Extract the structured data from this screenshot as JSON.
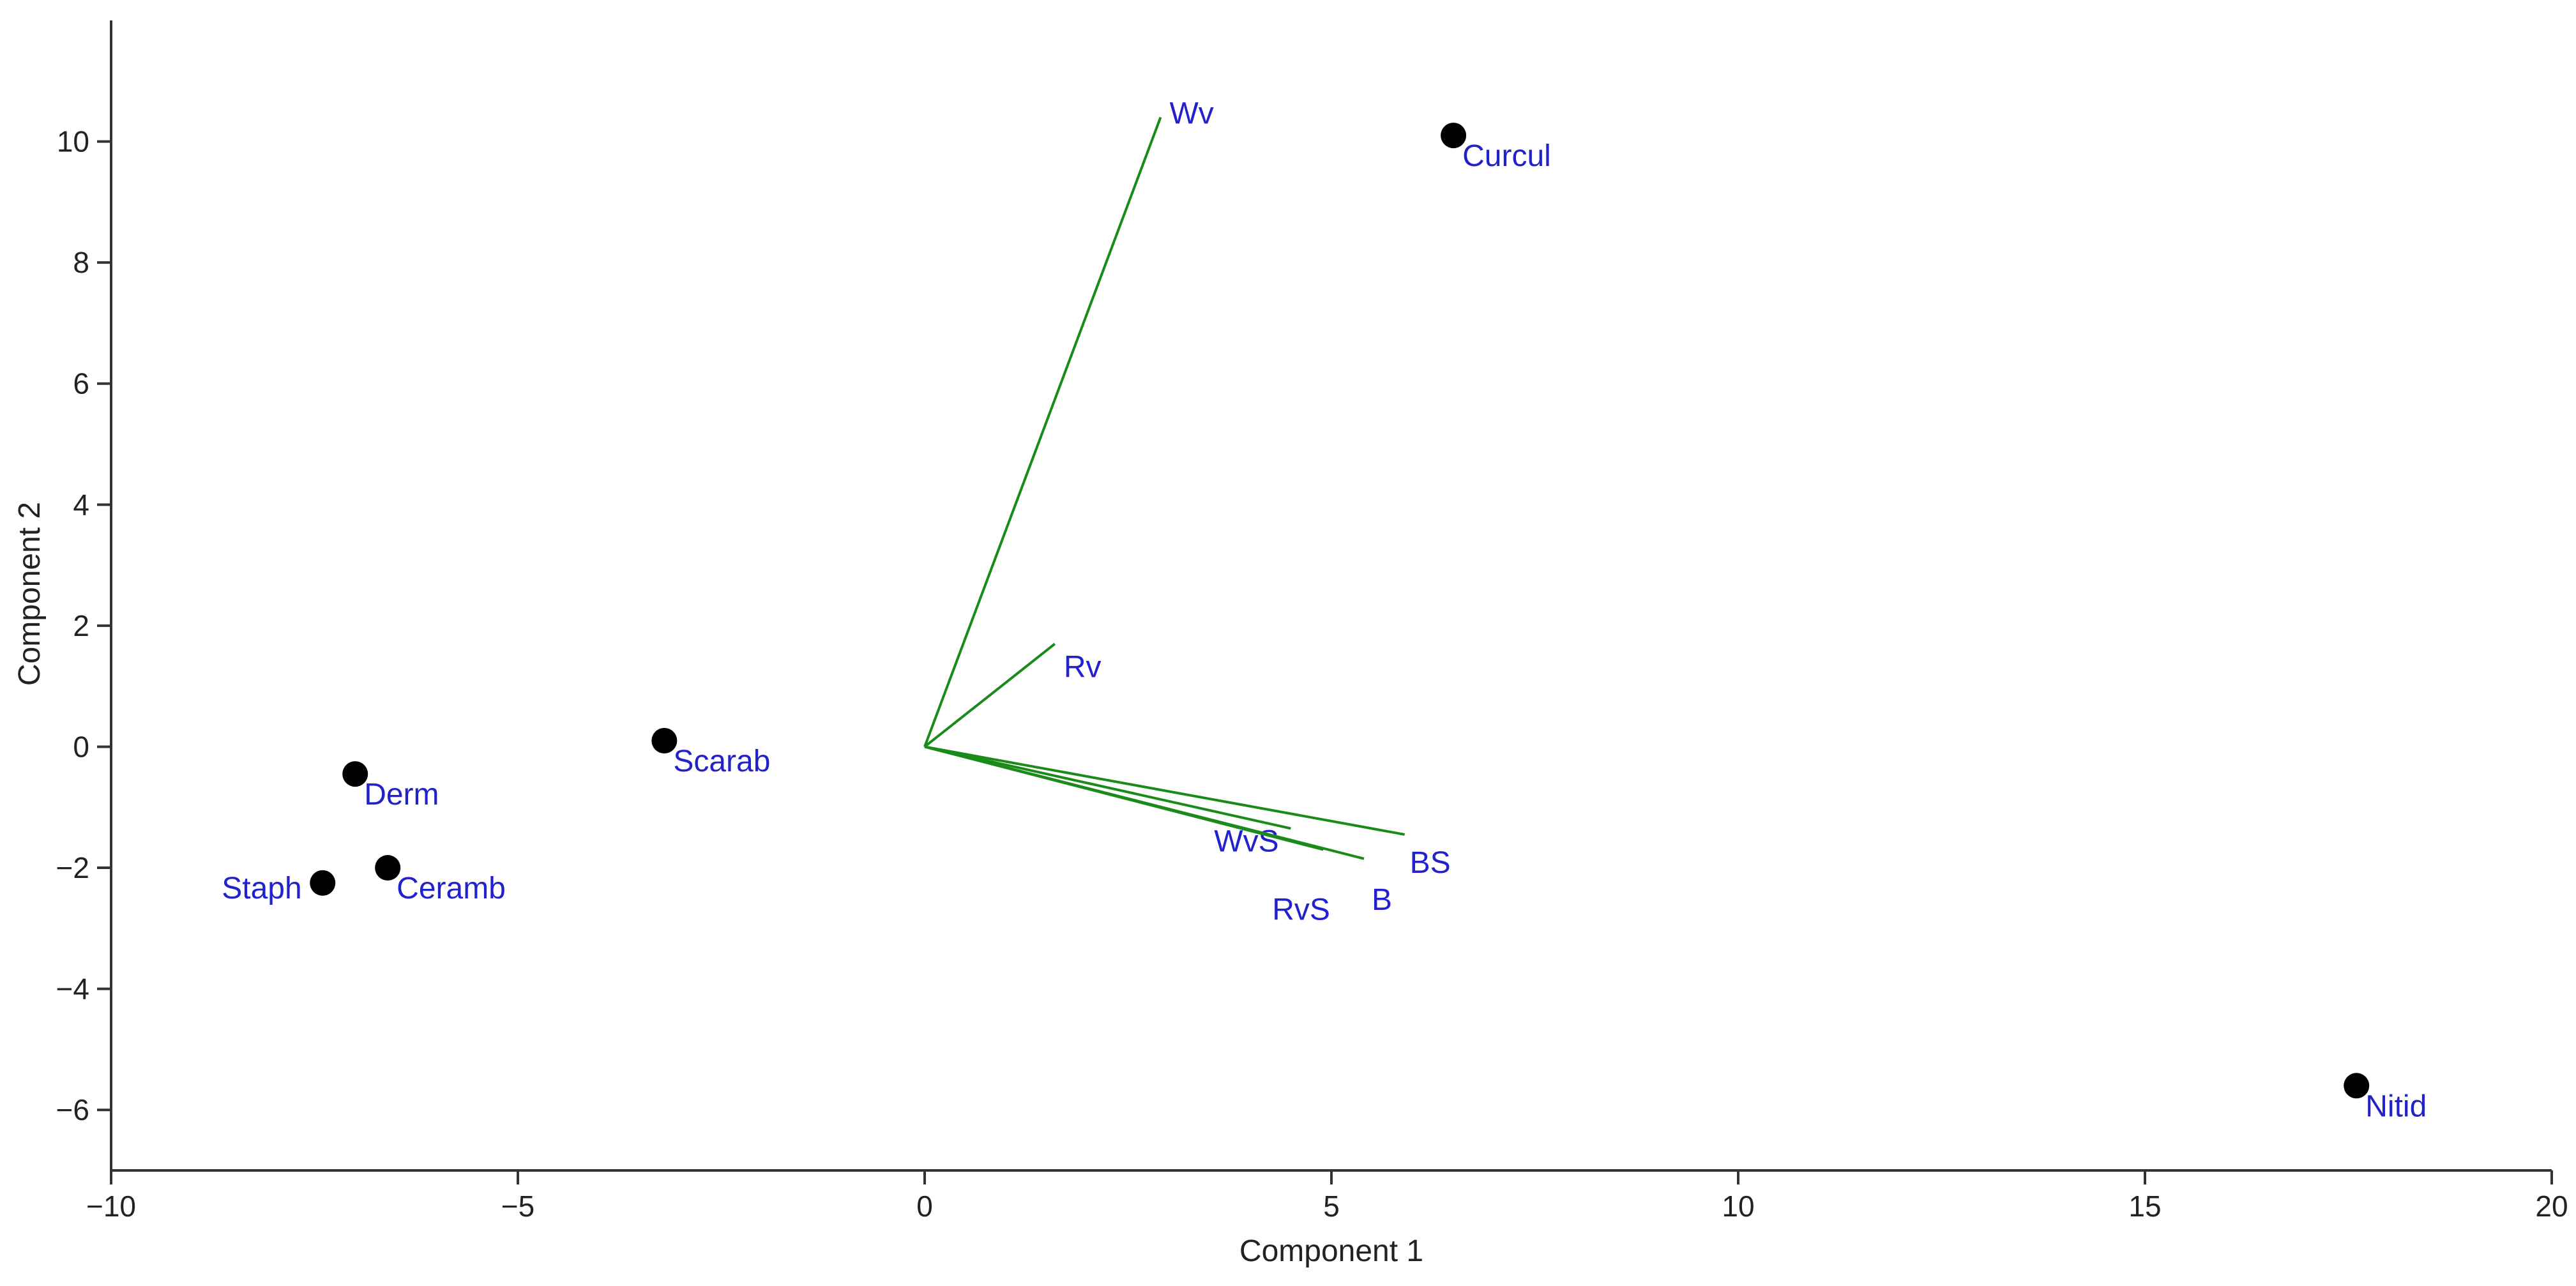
{
  "chart_data": {
    "type": "scatter",
    "subtype": "pca-biplot",
    "title": "",
    "xlabel": "Component 1",
    "ylabel": "Component 2",
    "xlim": [
      -10,
      20
    ],
    "ylim": [
      -7,
      12
    ],
    "x_ticks": [
      -10,
      -5,
      0,
      5,
      10,
      15,
      20
    ],
    "x_tick_labels": [
      "−10",
      "−5",
      "0",
      "5",
      "10",
      "15",
      "20"
    ],
    "y_ticks": [
      -6,
      -4,
      -2,
      0,
      2,
      4,
      6,
      8,
      10
    ],
    "y_tick_labels": [
      "−6",
      "−4",
      "−2",
      "0",
      "2",
      "4",
      "6",
      "8",
      "10"
    ],
    "grid": false,
    "colors": {
      "point": "#000000",
      "label": "#2222cc",
      "loading": "#1a8a1a",
      "axis": "#333333"
    },
    "points": [
      {
        "label": "Curcul",
        "x": 6.5,
        "y": 10.1
      },
      {
        "label": "Scarab",
        "x": -3.2,
        "y": 0.1
      },
      {
        "label": "Derm",
        "x": -7.0,
        "y": -0.45
      },
      {
        "label": "Ceramb",
        "x": -6.6,
        "y": -2.0
      },
      {
        "label": "Staph",
        "x": -7.4,
        "y": -2.25
      },
      {
        "label": "Nitid",
        "x": 17.6,
        "y": -5.6
      }
    ],
    "loadings": [
      {
        "label": "Wv",
        "x": 2.9,
        "y": 10.4
      },
      {
        "label": "Rv",
        "x": 1.6,
        "y": 1.7
      },
      {
        "label": "WvS",
        "x": 4.5,
        "y": -1.35
      },
      {
        "label": "RvS",
        "x": 4.9,
        "y": -1.7
      },
      {
        "label": "B",
        "x": 5.4,
        "y": -1.85
      },
      {
        "label": "BS",
        "x": 5.9,
        "y": -1.45
      }
    ]
  }
}
